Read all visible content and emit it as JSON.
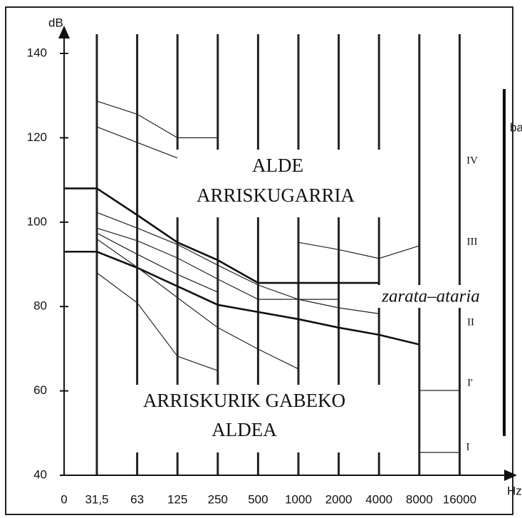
{
  "chart_data": {
    "type": "line",
    "y_label": "dB",
    "x_label": "Hz",
    "categories": [
      "0",
      "31,5",
      "63",
      "125",
      "250",
      "500",
      "1000",
      "2000",
      "4000",
      "8000",
      "16000"
    ],
    "ylim": [
      40,
      140
    ],
    "yticks": [
      40,
      60,
      80,
      100,
      120,
      140
    ],
    "grid": true,
    "series": [
      {
        "color": "#111",
        "width": 2.6,
        "values": [
          108,
          108,
          101.7,
          95.2,
          91,
          85.6,
          85.6,
          85.6,
          85.6,
          null,
          null
        ]
      },
      {
        "color": "#111",
        "width": 2.6,
        "values": [
          93,
          93,
          89.2,
          84.8,
          80.4,
          78.7,
          77,
          75,
          73.3,
          71,
          null
        ]
      },
      {
        "color": "#222",
        "width": 1.2,
        "values": [
          null,
          128.7,
          125.6,
          120,
          120,
          null,
          null,
          null,
          null,
          null,
          null
        ]
      },
      {
        "color": "#222",
        "width": 1.2,
        "values": [
          null,
          122.6,
          118.9,
          115.2,
          null,
          null,
          null,
          null,
          null,
          null,
          null
        ]
      },
      {
        "color": "#222",
        "width": 1.2,
        "values": [
          null,
          null,
          null,
          null,
          null,
          null,
          95.2,
          93.5,
          91.4,
          94.4,
          null
        ]
      },
      {
        "color": "#222",
        "width": 1.2,
        "values": [
          null,
          102.3,
          98.6,
          94.7,
          89.8,
          85.1,
          81.7,
          79.7,
          78.3,
          null,
          null
        ]
      },
      {
        "color": "#222",
        "width": 1.2,
        "values": [
          null,
          98.6,
          95.6,
          91.5,
          86.5,
          81.7,
          81.7,
          81.7,
          null,
          null,
          null
        ]
      },
      {
        "color": "#222",
        "width": 1.2,
        "values": [
          null,
          97.4,
          92.4,
          87.6,
          83.4,
          null,
          null,
          null,
          null,
          null,
          null
        ]
      },
      {
        "color": "#222",
        "width": 1.2,
        "values": [
          null,
          96,
          89.3,
          82.1,
          75,
          69.9,
          65.2,
          null,
          null,
          null,
          null
        ]
      },
      {
        "color": "#222",
        "width": 1.2,
        "values": [
          null,
          88,
          80.9,
          68.2,
          64.8,
          null,
          null,
          null,
          null,
          null,
          null
        ]
      },
      {
        "color": "#222",
        "width": 1.2,
        "values": [
          null,
          null,
          null,
          null,
          null,
          null,
          null,
          null,
          null,
          60.1,
          60.1
        ]
      },
      {
        "color": "#222",
        "width": 1.2,
        "values": [
          null,
          null,
          null,
          null,
          null,
          null,
          null,
          null,
          null,
          45.4,
          45.4
        ]
      }
    ],
    "annotations": [
      "ALDE",
      "ARRISKUGARRIA",
      "zarata–ataria",
      "ARRISKURIK GABEKO",
      "ALDEA",
      "IV",
      "III",
      "II",
      "I'",
      "I",
      "ba"
    ]
  }
}
